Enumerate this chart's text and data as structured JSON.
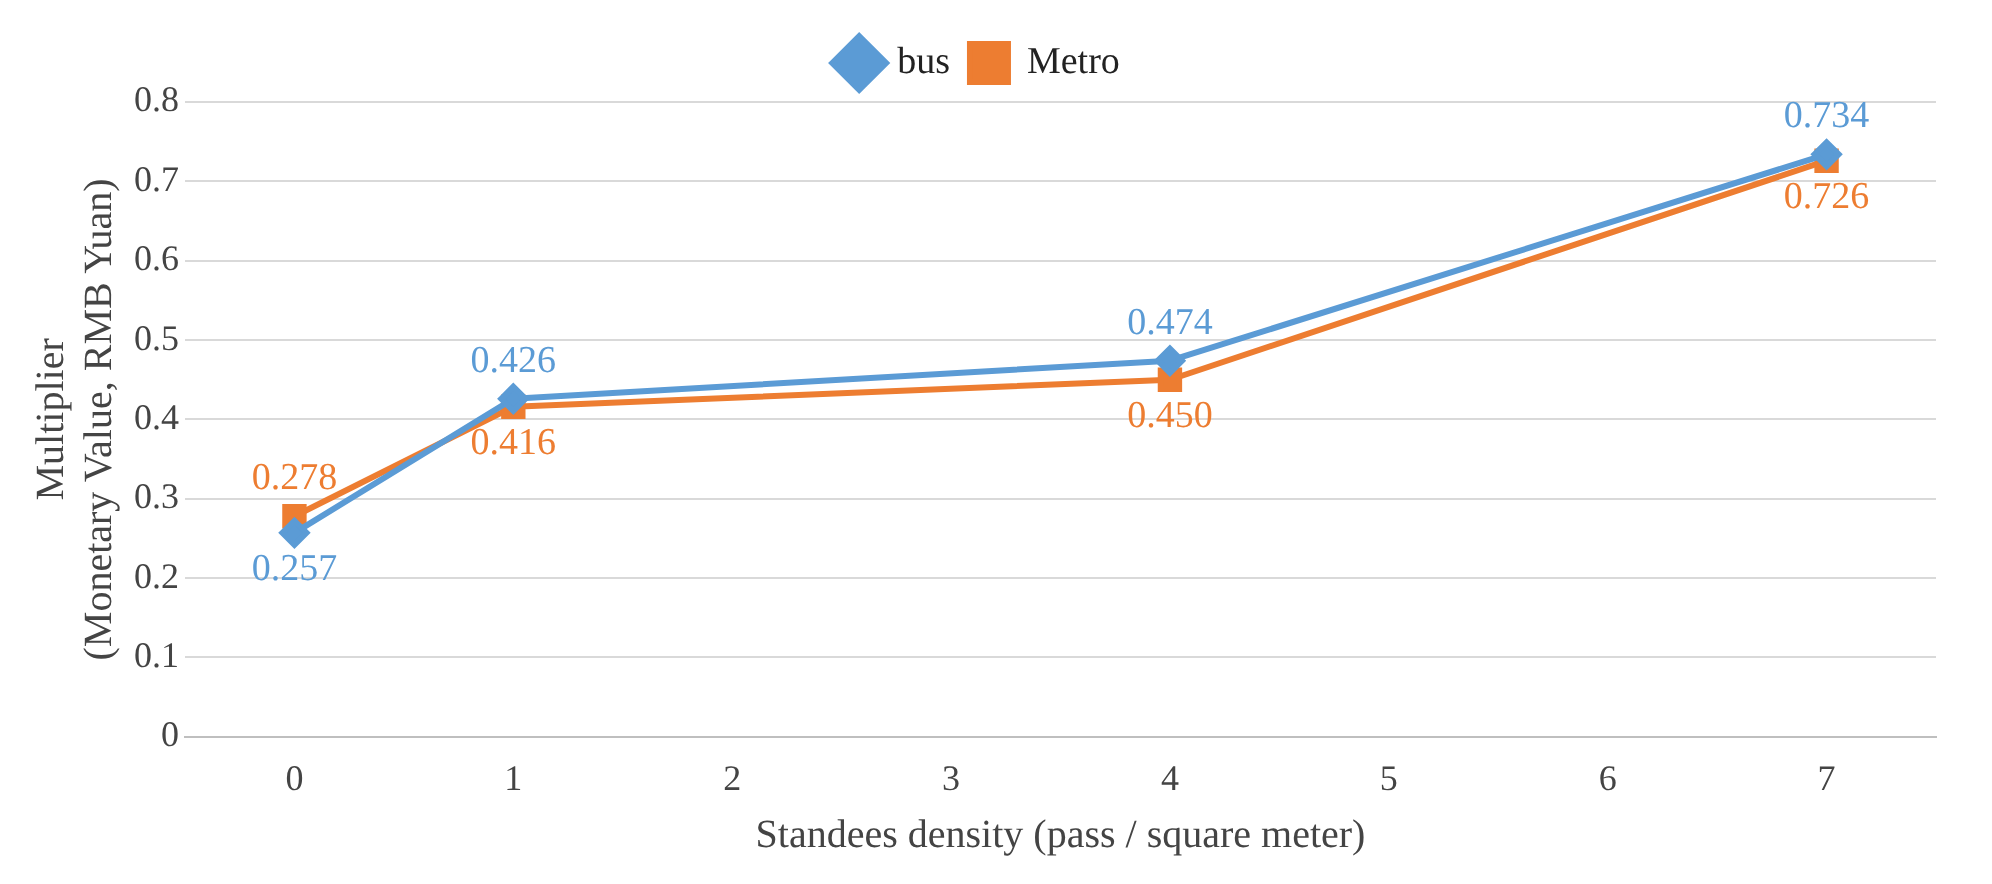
{
  "chart_data": {
    "type": "line",
    "xlabel": "Standees density (pass / square meter)",
    "ylabel": "Multiplier\n(Monetary Value, RMB Yuan)",
    "x": [
      0,
      1,
      4,
      7
    ],
    "xlim": [
      -0.5,
      7.5
    ],
    "xticks": [
      0,
      1,
      2,
      3,
      4,
      5,
      6,
      7
    ],
    "ylim": [
      0,
      0.8
    ],
    "yticks": [
      0,
      0.1,
      0.2,
      0.3,
      0.4,
      0.5,
      0.6,
      0.7,
      0.8
    ],
    "grid": "y",
    "legend": "top",
    "series": [
      {
        "name": "bus",
        "color": "#5b9bd5",
        "marker": "diamond",
        "values": [
          0.257,
          0.426,
          0.474,
          0.734
        ],
        "value_labels": [
          "0.257",
          "0.426",
          "0.474",
          "0.734"
        ]
      },
      {
        "name": "Metro",
        "color": "#ed7d31",
        "marker": "square",
        "values": [
          0.278,
          0.416,
          0.45,
          0.726
        ],
        "value_labels": [
          "0.278",
          "0.416",
          "0.450",
          "0.726"
        ]
      }
    ]
  }
}
